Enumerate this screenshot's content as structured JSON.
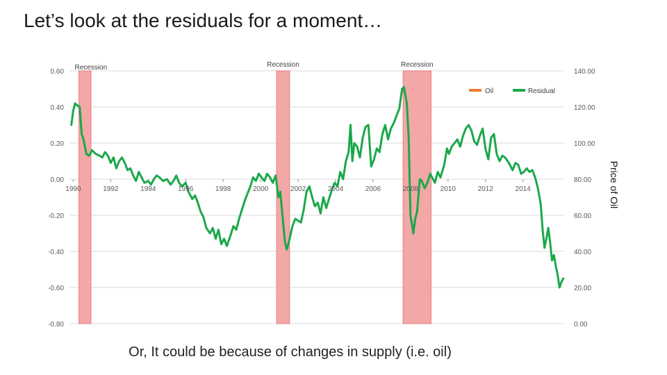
{
  "slide": {
    "title": "Let’s look at the residuals for a moment…",
    "caption": "Or, It could be because of changes in supply (i.e. oil)"
  },
  "chart_data": {
    "type": "line",
    "title": "",
    "y_left": {
      "range": [
        -0.8,
        0.6
      ],
      "ticks": [
        "0.60",
        "0.40",
        "0.20",
        "0.00",
        "-0.20",
        "-0.40",
        "-0.60",
        "-0.80"
      ],
      "tick_values": [
        0.6,
        0.4,
        0.2,
        0.0,
        -0.2,
        -0.4,
        -0.6,
        -0.8
      ]
    },
    "y_right": {
      "label": "Price of Oil",
      "range": [
        0,
        140
      ],
      "ticks": [
        "140.00",
        "120.00",
        "100.00",
        "80.00",
        "60.00",
        "40.00",
        "20.00",
        "0.00"
      ],
      "tick_values": [
        140,
        120,
        100,
        80,
        60,
        40,
        20,
        0
      ]
    },
    "x": {
      "range": [
        1989.8,
        2016.2
      ],
      "ticks": [
        "1990",
        "1992",
        "1994",
        "1996",
        "1998",
        "2000",
        "2002",
        "2004",
        "2006",
        "2008",
        "2010",
        "2012",
        "2014"
      ],
      "tick_values": [
        1990,
        1992,
        1994,
        1996,
        1998,
        2000,
        2002,
        2004,
        2006,
        2008,
        2010,
        2012,
        2014
      ]
    },
    "grid": true,
    "legend": {
      "position": "top-right",
      "entries": [
        {
          "name": "Oil",
          "color": "#ED7D31"
        },
        {
          "name": "Residual",
          "color": "#1AA84A"
        }
      ]
    },
    "recessions": [
      {
        "label": "Recession",
        "start": 1990.3,
        "end": 1990.95
      },
      {
        "label": "Recession",
        "start": 2000.85,
        "end": 2001.55
      },
      {
        "label": "Recession",
        "start": 2007.6,
        "end": 2009.1
      }
    ],
    "colors": {
      "residual": "#1AA84A",
      "recession_fill": "#F4A7A7",
      "recession_edge": "#E07070",
      "grid": "#D9D9D9",
      "oil": "#ED7D31"
    },
    "series": [
      {
        "name": "Residual",
        "axis": "left",
        "points": [
          [
            1989.9,
            0.3
          ],
          [
            1990.0,
            0.38
          ],
          [
            1990.1,
            0.42
          ],
          [
            1990.2,
            0.41
          ],
          [
            1990.35,
            0.4
          ],
          [
            1990.45,
            0.25
          ],
          [
            1990.55,
            0.22
          ],
          [
            1990.7,
            0.14
          ],
          [
            1990.85,
            0.13
          ],
          [
            1991.0,
            0.16
          ],
          [
            1991.2,
            0.14
          ],
          [
            1991.4,
            0.13
          ],
          [
            1991.55,
            0.12
          ],
          [
            1991.7,
            0.15
          ],
          [
            1991.85,
            0.13
          ],
          [
            1992.0,
            0.09
          ],
          [
            1992.15,
            0.12
          ],
          [
            1992.3,
            0.06
          ],
          [
            1992.45,
            0.1
          ],
          [
            1992.6,
            0.12
          ],
          [
            1992.75,
            0.09
          ],
          [
            1992.9,
            0.05
          ],
          [
            1993.05,
            0.06
          ],
          [
            1993.2,
            0.02
          ],
          [
            1993.35,
            -0.01
          ],
          [
            1993.5,
            0.04
          ],
          [
            1993.65,
            0.01
          ],
          [
            1993.8,
            -0.02
          ],
          [
            1994.0,
            -0.01
          ],
          [
            1994.15,
            -0.03
          ],
          [
            1994.3,
            0.0
          ],
          [
            1994.45,
            0.02
          ],
          [
            1994.6,
            0.01
          ],
          [
            1994.8,
            -0.01
          ],
          [
            1995.0,
            0.0
          ],
          [
            1995.2,
            -0.03
          ],
          [
            1995.35,
            -0.01
          ],
          [
            1995.5,
            0.02
          ],
          [
            1995.65,
            -0.02
          ],
          [
            1995.8,
            -0.04
          ],
          [
            1996.0,
            -0.02
          ],
          [
            1996.15,
            -0.07
          ],
          [
            1996.35,
            -0.11
          ],
          [
            1996.5,
            -0.09
          ],
          [
            1996.65,
            -0.13
          ],
          [
            1996.8,
            -0.18
          ],
          [
            1996.95,
            -0.21
          ],
          [
            1997.1,
            -0.27
          ],
          [
            1997.3,
            -0.3
          ],
          [
            1997.45,
            -0.27
          ],
          [
            1997.6,
            -0.33
          ],
          [
            1997.75,
            -0.28
          ],
          [
            1997.9,
            -0.36
          ],
          [
            1998.05,
            -0.33
          ],
          [
            1998.2,
            -0.37
          ],
          [
            1998.4,
            -0.31
          ],
          [
            1998.55,
            -0.26
          ],
          [
            1998.7,
            -0.28
          ],
          [
            1998.85,
            -0.22
          ],
          [
            1999.0,
            -0.17
          ],
          [
            1999.15,
            -0.12
          ],
          [
            1999.3,
            -0.08
          ],
          [
            1999.45,
            -0.04
          ],
          [
            1999.6,
            0.01
          ],
          [
            1999.75,
            -0.01
          ],
          [
            1999.9,
            0.03
          ],
          [
            2000.05,
            0.01
          ],
          [
            2000.2,
            -0.01
          ],
          [
            2000.35,
            0.03
          ],
          [
            2000.5,
            0.01
          ],
          [
            2000.65,
            -0.02
          ],
          [
            2000.8,
            0.02
          ],
          [
            2000.95,
            -0.1
          ],
          [
            2001.05,
            -0.07
          ],
          [
            2001.2,
            -0.24
          ],
          [
            2001.3,
            -0.35
          ],
          [
            2001.4,
            -0.39
          ],
          [
            2001.55,
            -0.33
          ],
          [
            2001.7,
            -0.26
          ],
          [
            2001.85,
            -0.22
          ],
          [
            2002.0,
            -0.23
          ],
          [
            2002.15,
            -0.24
          ],
          [
            2002.3,
            -0.17
          ],
          [
            2002.45,
            -0.07
          ],
          [
            2002.6,
            -0.04
          ],
          [
            2002.75,
            -0.1
          ],
          [
            2002.9,
            -0.15
          ],
          [
            2003.05,
            -0.13
          ],
          [
            2003.2,
            -0.19
          ],
          [
            2003.35,
            -0.1
          ],
          [
            2003.5,
            -0.16
          ],
          [
            2003.65,
            -0.11
          ],
          [
            2003.8,
            -0.06
          ],
          [
            2003.95,
            -0.02
          ],
          [
            2004.1,
            -0.04
          ],
          [
            2004.25,
            0.04
          ],
          [
            2004.4,
            0.0
          ],
          [
            2004.55,
            0.1
          ],
          [
            2004.7,
            0.15
          ],
          [
            2004.8,
            0.3
          ],
          [
            2004.9,
            0.1
          ],
          [
            2005.0,
            0.2
          ],
          [
            2005.15,
            0.18
          ],
          [
            2005.3,
            0.12
          ],
          [
            2005.45,
            0.23
          ],
          [
            2005.6,
            0.29
          ],
          [
            2005.75,
            0.3
          ],
          [
            2005.9,
            0.07
          ],
          [
            2006.05,
            0.11
          ],
          [
            2006.2,
            0.17
          ],
          [
            2006.35,
            0.15
          ],
          [
            2006.5,
            0.25
          ],
          [
            2006.65,
            0.3
          ],
          [
            2006.8,
            0.22
          ],
          [
            2006.95,
            0.28
          ],
          [
            2007.1,
            0.31
          ],
          [
            2007.25,
            0.35
          ],
          [
            2007.4,
            0.39
          ],
          [
            2007.55,
            0.5
          ],
          [
            2007.65,
            0.51
          ],
          [
            2007.8,
            0.42
          ],
          [
            2007.9,
            0.23
          ],
          [
            2008.0,
            -0.2
          ],
          [
            2008.15,
            -0.3
          ],
          [
            2008.25,
            -0.22
          ],
          [
            2008.35,
            -0.18
          ],
          [
            2008.5,
            0.0
          ],
          [
            2008.6,
            -0.01
          ],
          [
            2008.75,
            -0.05
          ],
          [
            2008.9,
            -0.02
          ],
          [
            2009.05,
            0.03
          ],
          [
            2009.15,
            0.01
          ],
          [
            2009.3,
            -0.02
          ],
          [
            2009.45,
            0.04
          ],
          [
            2009.6,
            0.01
          ],
          [
            2009.8,
            0.08
          ],
          [
            2009.95,
            0.17
          ],
          [
            2010.05,
            0.14
          ],
          [
            2010.2,
            0.18
          ],
          [
            2010.35,
            0.2
          ],
          [
            2010.5,
            0.22
          ],
          [
            2010.65,
            0.18
          ],
          [
            2010.8,
            0.24
          ],
          [
            2010.95,
            0.28
          ],
          [
            2011.1,
            0.3
          ],
          [
            2011.25,
            0.27
          ],
          [
            2011.4,
            0.21
          ],
          [
            2011.55,
            0.19
          ],
          [
            2011.7,
            0.24
          ],
          [
            2011.85,
            0.28
          ],
          [
            2012.0,
            0.17
          ],
          [
            2012.15,
            0.11
          ],
          [
            2012.3,
            0.23
          ],
          [
            2012.45,
            0.25
          ],
          [
            2012.6,
            0.14
          ],
          [
            2012.75,
            0.1
          ],
          [
            2012.9,
            0.13
          ],
          [
            2013.05,
            0.12
          ],
          [
            2013.25,
            0.09
          ],
          [
            2013.45,
            0.05
          ],
          [
            2013.6,
            0.09
          ],
          [
            2013.75,
            0.08
          ],
          [
            2013.9,
            0.03
          ],
          [
            2014.05,
            0.04
          ],
          [
            2014.2,
            0.06
          ],
          [
            2014.35,
            0.04
          ],
          [
            2014.5,
            0.05
          ],
          [
            2014.65,
            0.01
          ],
          [
            2014.8,
            -0.05
          ],
          [
            2014.95,
            -0.14
          ],
          [
            2015.05,
            -0.28
          ],
          [
            2015.15,
            -0.38
          ],
          [
            2015.25,
            -0.33
          ],
          [
            2015.35,
            -0.27
          ],
          [
            2015.45,
            -0.35
          ],
          [
            2015.55,
            -0.45
          ],
          [
            2015.65,
            -0.42
          ],
          [
            2015.75,
            -0.48
          ],
          [
            2015.85,
            -0.53
          ],
          [
            2015.95,
            -0.6
          ],
          [
            2016.05,
            -0.57
          ],
          [
            2016.15,
            -0.55
          ]
        ]
      }
    ]
  }
}
